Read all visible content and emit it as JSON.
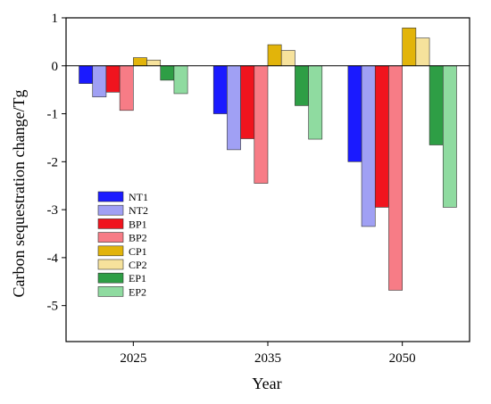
{
  "chart_data": {
    "type": "bar",
    "categories": [
      "2025",
      "2035",
      "2050"
    ],
    "xlabel": "Year",
    "ylabel": "Carbon sequestration change/Tg",
    "ylim": [
      -5.75,
      1
    ],
    "yticks": [
      1,
      0,
      -1,
      -2,
      -3,
      -4,
      -5
    ],
    "zero_line": true,
    "legend_position": "lower-left",
    "series": [
      {
        "name": "NT1",
        "color": "#1a1aff",
        "values": [
          -0.37,
          -1.0,
          -2.0
        ]
      },
      {
        "name": "NT2",
        "color": "#a0a0f4",
        "values": [
          -0.65,
          -1.75,
          -3.35
        ]
      },
      {
        "name": "BP1",
        "color": "#f0141e",
        "values": [
          -0.55,
          -1.52,
          -2.95
        ]
      },
      {
        "name": "BP2",
        "color": "#f77c86",
        "values": [
          -0.93,
          -2.45,
          -4.68
        ]
      },
      {
        "name": "CP1",
        "color": "#e2b40a",
        "values": [
          0.17,
          0.44,
          0.79
        ]
      },
      {
        "name": "CP2",
        "color": "#f6e29c",
        "values": [
          0.12,
          0.32,
          0.58
        ]
      },
      {
        "name": "EP1",
        "color": "#2e9e45",
        "values": [
          -0.3,
          -0.83,
          -1.65
        ]
      },
      {
        "name": "EP2",
        "color": "#8fdba0",
        "values": [
          -0.58,
          -1.53,
          -2.95
        ]
      }
    ]
  }
}
